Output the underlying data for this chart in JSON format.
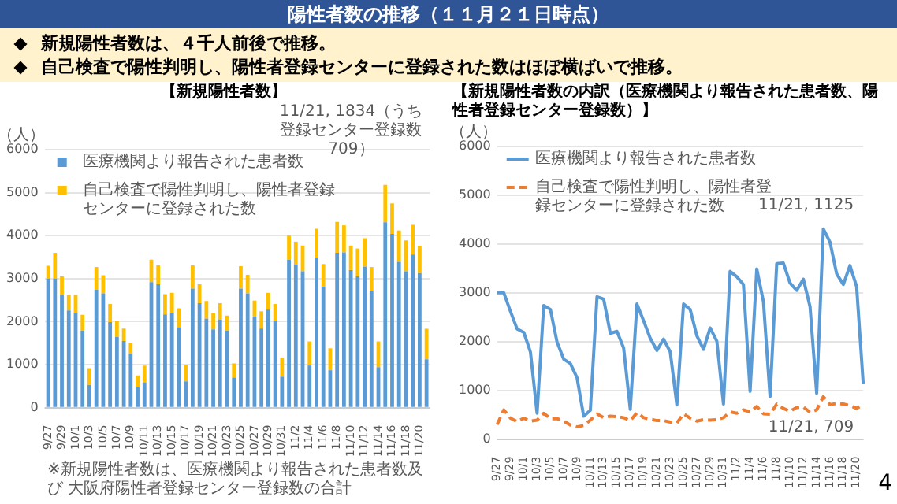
{
  "chart_data": [
    {
      "type": "other",
      "title": "陽性者数の推移（１１月２１日時点）",
      "annotations": [
        "新規陽性者数は、４千人前後で推移。",
        "自己検査で陽性判明し、陽性者登録センターに登録された数はほぼ横ばいで推移。"
      ]
    },
    {
      "type": "bar",
      "title": "【新規陽性者数】",
      "ylabel": "（人）",
      "stacked": true,
      "categories": [
        "9/27",
        null,
        "9/29",
        null,
        "10/1",
        null,
        "10/3",
        null,
        "10/5",
        null,
        "10/7",
        null,
        "10/9",
        null,
        "10/11",
        null,
        "10/13",
        null,
        "10/15",
        null,
        "10/17",
        null,
        "10/19",
        null,
        "10/21",
        null,
        "10/23",
        null,
        "10/25",
        null,
        "10/27",
        null,
        "10/29",
        null,
        "10/31",
        null,
        "11/2",
        null,
        "11/4",
        null,
        "11/6",
        null,
        "11/8",
        null,
        "11/10",
        null,
        "11/12",
        null,
        "11/14",
        null,
        "11/16",
        null,
        "11/18",
        null,
        "11/20",
        null
      ],
      "series": [
        {
          "name": "医療機関より報告された患者数",
          "color": "#5b9bd5",
          "values": [
            3000,
            3000,
            2620,
            2260,
            2190,
            1790,
            530,
            2740,
            2660,
            1990,
            1640,
            1550,
            1260,
            470,
            590,
            2920,
            2870,
            2170,
            2210,
            1870,
            610,
            2770,
            2430,
            2070,
            1820,
            2050,
            1790,
            700,
            2770,
            2660,
            2120,
            1840,
            2280,
            2010,
            720,
            3440,
            3330,
            3170,
            980,
            3490,
            2820,
            870,
            3600,
            3610,
            3200,
            3050,
            3280,
            2720,
            940,
            4310,
            4040,
            3390,
            3170,
            3560,
            3130,
            1125
          ]
        },
        {
          "name": "自己検査で陽性判明し、陽性者登録センターに登録された数",
          "color": "#ffc000",
          "values": [
            300,
            600,
            430,
            360,
            430,
            370,
            390,
            530,
            420,
            420,
            370,
            290,
            250,
            280,
            390,
            520,
            440,
            470,
            460,
            440,
            380,
            540,
            440,
            410,
            380,
            380,
            350,
            330,
            520,
            430,
            370,
            400,
            390,
            400,
            440,
            560,
            530,
            600,
            560,
            670,
            520,
            510,
            720,
            630,
            570,
            650,
            660,
            550,
            600,
            870,
            710,
            730,
            720,
            690,
            630,
            709
          ]
        }
      ],
      "ylim": [
        0,
        6000
      ],
      "yticks": [
        0,
        1000,
        2000,
        3000,
        4000,
        5000,
        6000
      ],
      "grid": "y",
      "legend": "top left",
      "annotations": [
        "11/21, 1834（うち登録センター登録数709）",
        "※新規陽性者数は、医療機関より報告された患者数及び 大阪府陽性者登録センター登録数の合計"
      ]
    },
    {
      "type": "line",
      "title": "【新規陽性者数の内訳（医療機関より報告された患者数、陽性者登録センター登録数）】",
      "ylabel": "（人）",
      "categories": [
        "9/27",
        null,
        "9/29",
        null,
        "10/1",
        null,
        "10/3",
        null,
        "10/5",
        null,
        "10/7",
        null,
        "10/9",
        null,
        "10/11",
        null,
        "10/13",
        null,
        "10/15",
        null,
        "10/17",
        null,
        "10/19",
        null,
        "10/21",
        null,
        "10/23",
        null,
        "10/25",
        null,
        "10/27",
        null,
        "10/29",
        null,
        "10/31",
        null,
        "11/2",
        null,
        "11/4",
        null,
        "11/6",
        null,
        "11/8",
        null,
        "11/10",
        null,
        "11/12",
        null,
        "11/14",
        null,
        "11/16",
        null,
        "11/18",
        null,
        "11/20",
        null
      ],
      "series": [
        {
          "name": "医療機関より報告された患者数",
          "color": "#5b9bd5",
          "line_style": "solid",
          "values": [
            3000,
            3000,
            2620,
            2260,
            2190,
            1790,
            530,
            2740,
            2660,
            1990,
            1640,
            1550,
            1260,
            470,
            590,
            2920,
            2870,
            2170,
            2210,
            1870,
            610,
            2770,
            2430,
            2070,
            1820,
            2050,
            1790,
            700,
            2770,
            2660,
            2120,
            1840,
            2280,
            2010,
            720,
            3440,
            3330,
            3170,
            980,
            3490,
            2820,
            870,
            3600,
            3610,
            3200,
            3050,
            3280,
            2720,
            940,
            4310,
            4040,
            3390,
            3170,
            3560,
            3130,
            1125
          ]
        },
        {
          "name": "自己検査で陽性判明し、陽性者登録センターに登録された数",
          "color": "#ed7d31",
          "line_style": "dashed",
          "values": [
            300,
            600,
            430,
            360,
            430,
            370,
            390,
            530,
            420,
            420,
            370,
            290,
            250,
            280,
            390,
            520,
            440,
            470,
            460,
            440,
            380,
            540,
            440,
            410,
            380,
            380,
            350,
            330,
            520,
            430,
            370,
            400,
            390,
            400,
            440,
            560,
            530,
            600,
            560,
            670,
            520,
            510,
            720,
            630,
            570,
            650,
            660,
            550,
            600,
            870,
            710,
            730,
            720,
            690,
            630,
            709
          ]
        }
      ],
      "ylim": [
        0,
        6000
      ],
      "yticks": [
        0,
        1000,
        2000,
        3000,
        4000,
        5000,
        6000
      ],
      "grid": "y",
      "legend": "top left",
      "marker": "none",
      "annotations": [
        "11/21, 1125",
        "11/21, 709",
        "4"
      ]
    }
  ]
}
